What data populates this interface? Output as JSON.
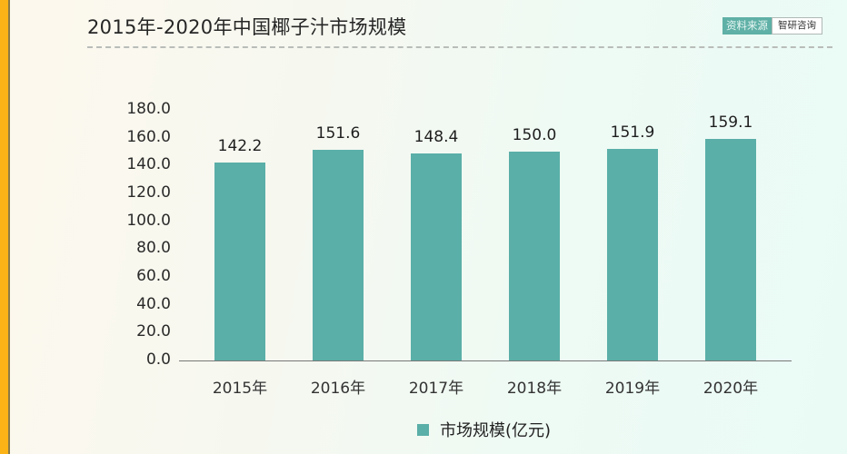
{
  "header": {
    "title": "2015年-2020年中国椰子汁市场规模",
    "source_label": "资料来源",
    "source_value": "智研咨询"
  },
  "colors": {
    "accent_left": "#fbb316",
    "bar": "#5aafa8",
    "source_bg": "#5fb0a6"
  },
  "legend": {
    "label": "市场规模(亿元)"
  },
  "chart_data": {
    "type": "bar",
    "title": "2015年-2020年中国椰子汁市场规模",
    "categories": [
      "2015年",
      "2016年",
      "2017年",
      "2018年",
      "2019年",
      "2020年"
    ],
    "series": [
      {
        "name": "市场规模(亿元)",
        "values": [
          142.2,
          151.6,
          148.4,
          150.0,
          151.9,
          159.1
        ]
      }
    ],
    "value_labels": [
      "142.2",
      "151.6",
      "148.4",
      "150.0",
      "151.9",
      "159.1"
    ],
    "y_ticks": [
      "0.0",
      "20.0",
      "40.0",
      "60.0",
      "80.0",
      "100.0",
      "120.0",
      "140.0",
      "160.0",
      "180.0"
    ],
    "xlabel": "",
    "ylabel": "",
    "ylim": [
      0,
      180
    ],
    "grid": false,
    "legend_position": "bottom"
  }
}
